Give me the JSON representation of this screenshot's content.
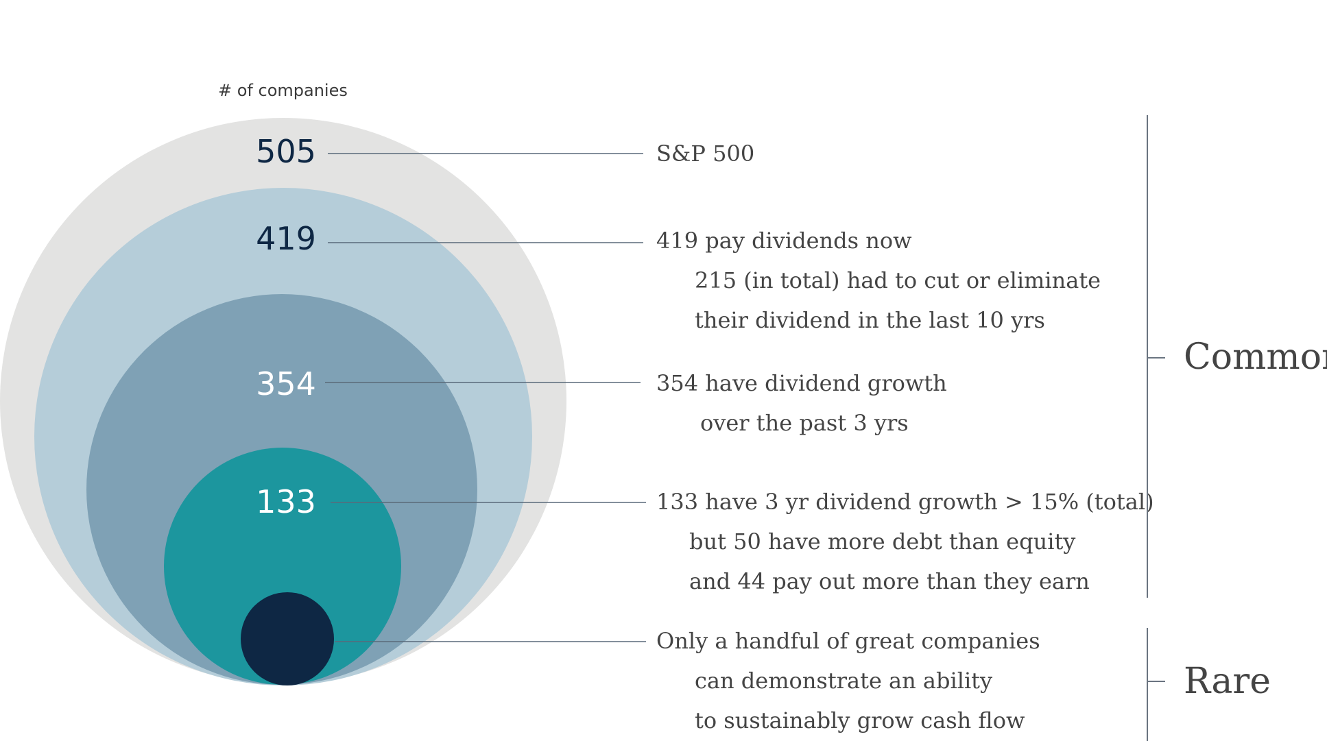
{
  "caption": "# of companies",
  "colors": {
    "ring_505": "#e3e3e2",
    "ring_419": "#b5cdd9",
    "ring_354": "#7fa1b5",
    "ring_133": "#1c969e",
    "ring_rare": "#0e2744",
    "dark_text": "#0e2744",
    "light_text": "#ffffff",
    "leader": "#5a6a7a",
    "bracket": "#6a7480"
  },
  "levels": [
    {
      "value": "505",
      "lines": [
        "S&P 500"
      ]
    },
    {
      "value": "419",
      "lines": [
        "419 pay dividends now",
        "215 (in total) had to cut or eliminate",
        "their dividend in the last 10 yrs"
      ]
    },
    {
      "value": "354",
      "lines": [
        "354 have dividend growth",
        "over the past 3 yrs"
      ]
    },
    {
      "value": "133",
      "lines": [
        "133 have 3 yr dividend growth > 15% (total)",
        "but 50 have more debt than equity",
        "and 44 pay out more than they earn"
      ]
    },
    {
      "value": "",
      "lines": [
        "Only a handful of great companies",
        "can demonstrate an ability",
        "to sustainably grow cash flow"
      ]
    }
  ],
  "brackets": [
    {
      "label": "Common"
    },
    {
      "label": "Rare"
    }
  ]
}
